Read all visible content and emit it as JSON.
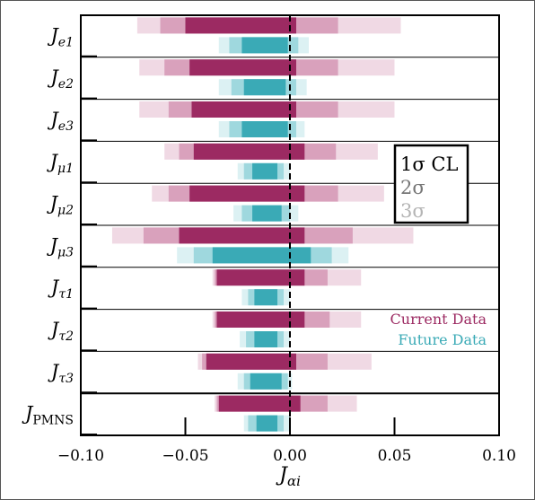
{
  "chart_data": {
    "type": "bar",
    "orientation": "horizontal",
    "xlabel": "J_αi",
    "xlim": [
      -0.1,
      0.1
    ],
    "xticks": [
      -0.1,
      -0.05,
      0.0,
      0.05,
      0.1
    ],
    "xtick_labels": [
      "−0.10",
      "−0.05",
      "0.00",
      "0.05",
      "0.10"
    ],
    "zero_line": "dashed",
    "legend_cl": {
      "placement": "right",
      "entries": [
        {
          "label": "1σ CL",
          "color": "#000000"
        },
        {
          "label": "2σ",
          "color": "#777777"
        },
        {
          "label": "3σ",
          "color": "#b5b5b5"
        }
      ]
    },
    "legend_data": {
      "placement": "right",
      "entries": [
        {
          "label": "Current Data",
          "color": "#9c2a62"
        },
        {
          "label": "Future Data",
          "color": "#3aaab6"
        }
      ]
    },
    "colors": {
      "current": [
        "#9c2a62",
        "#d9a1bc",
        "#f0d9e4"
      ],
      "future": [
        "#3aaab6",
        "#9fd8de",
        "#dcf1f3"
      ]
    },
    "categories": [
      {
        "main": "J",
        "sub": "e1"
      },
      {
        "main": "J",
        "sub": "e2"
      },
      {
        "main": "J",
        "sub": "e3"
      },
      {
        "main": "J",
        "sub": "μ1"
      },
      {
        "main": "J",
        "sub": "μ2"
      },
      {
        "main": "J",
        "sub": "μ3"
      },
      {
        "main": "J",
        "sub": "τ1"
      },
      {
        "main": "J",
        "sub": "τ2"
      },
      {
        "main": "J",
        "sub": "τ3"
      },
      {
        "main": "J",
        "sub": "PMNS"
      }
    ],
    "series": [
      {
        "name": "Current Data",
        "intervals": [
          {
            "s1": [
              -0.05,
              0.003
            ],
            "s2": [
              -0.062,
              0.023
            ],
            "s3": [
              -0.073,
              0.053
            ]
          },
          {
            "s1": [
              -0.048,
              0.003
            ],
            "s2": [
              -0.06,
              0.023
            ],
            "s3": [
              -0.072,
              0.05
            ]
          },
          {
            "s1": [
              -0.047,
              0.003
            ],
            "s2": [
              -0.058,
              0.023
            ],
            "s3": [
              -0.072,
              0.05
            ]
          },
          {
            "s1": [
              -0.046,
              0.007
            ],
            "s2": [
              -0.053,
              0.022
            ],
            "s3": [
              -0.06,
              0.042
            ]
          },
          {
            "s1": [
              -0.048,
              0.007
            ],
            "s2": [
              -0.058,
              0.023
            ],
            "s3": [
              -0.066,
              0.045
            ]
          },
          {
            "s1": [
              -0.053,
              0.007
            ],
            "s2": [
              -0.07,
              0.03
            ],
            "s3": [
              -0.085,
              0.059
            ]
          },
          {
            "s1": [
              -0.035,
              0.007
            ],
            "s2": [
              -0.036,
              0.018
            ],
            "s3": [
              -0.037,
              0.034
            ]
          },
          {
            "s1": [
              -0.035,
              0.007
            ],
            "s2": [
              -0.036,
              0.019
            ],
            "s3": [
              -0.037,
              0.034
            ]
          },
          {
            "s1": [
              -0.04,
              0.003
            ],
            "s2": [
              -0.042,
              0.018
            ],
            "s3": [
              -0.044,
              0.039
            ]
          },
          {
            "s1": [
              -0.034,
              0.005
            ],
            "s2": [
              -0.035,
              0.018
            ],
            "s3": [
              -0.036,
              0.032
            ]
          }
        ]
      },
      {
        "name": "Future Data",
        "intervals": [
          {
            "s1": [
              -0.023,
              -0.001
            ],
            "s2": [
              -0.029,
              0.004
            ],
            "s3": [
              -0.034,
              0.009
            ]
          },
          {
            "s1": [
              -0.022,
              -0.002
            ],
            "s2": [
              -0.028,
              0.003
            ],
            "s3": [
              -0.034,
              0.008
            ]
          },
          {
            "s1": [
              -0.023,
              -0.001
            ],
            "s2": [
              -0.029,
              0.003
            ],
            "s3": [
              -0.034,
              0.007
            ]
          },
          {
            "s1": [
              -0.018,
              -0.006
            ],
            "s2": [
              -0.022,
              -0.003
            ],
            "s3": [
              -0.025,
              0.0
            ]
          },
          {
            "s1": [
              -0.018,
              -0.004
            ],
            "s2": [
              -0.023,
              0.0
            ],
            "s3": [
              -0.027,
              0.004
            ]
          },
          {
            "s1": [
              -0.037,
              0.01
            ],
            "s2": [
              -0.046,
              0.02
            ],
            "s3": [
              -0.054,
              0.028
            ]
          },
          {
            "s1": [
              -0.017,
              -0.006
            ],
            "s2": [
              -0.02,
              -0.003
            ],
            "s3": [
              -0.023,
              0.0
            ]
          },
          {
            "s1": [
              -0.017,
              -0.006
            ],
            "s2": [
              -0.021,
              -0.003
            ],
            "s3": [
              -0.024,
              0.0
            ]
          },
          {
            "s1": [
              -0.019,
              -0.004
            ],
            "s2": [
              -0.022,
              -0.001
            ],
            "s3": [
              -0.025,
              0.001
            ]
          },
          {
            "s1": [
              -0.016,
              -0.006
            ],
            "s2": [
              -0.02,
              -0.003
            ],
            "s3": [
              -0.022,
              0.0
            ]
          }
        ]
      }
    ]
  }
}
